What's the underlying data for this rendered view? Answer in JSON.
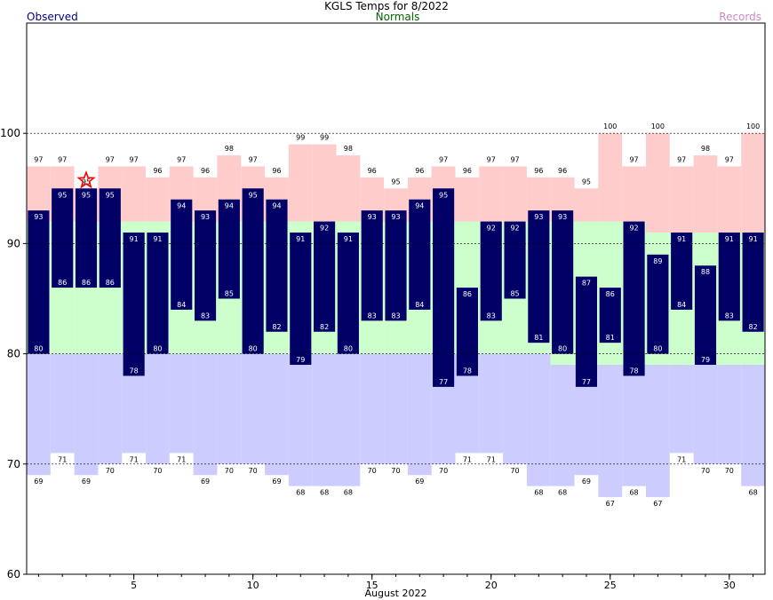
{
  "header": {
    "title": "KGLS Temps for 8/2022",
    "observed_label": "Observed",
    "normals_label": "Normals",
    "records_label": "Records"
  },
  "colors": {
    "observed": "#000066",
    "normal_band": "#ccffcc",
    "record_high_band": "#ffcccc",
    "record_low_band": "#ccccff",
    "star": "#ff0000"
  },
  "chart_data": {
    "type": "bar",
    "title": "KGLS Temps for 8/2022",
    "xlabel": "August 2022",
    "ylabel": "",
    "xlim": [
      0.5,
      31.5
    ],
    "ylim": [
      60,
      110
    ],
    "x_ticks": [
      5,
      10,
      15,
      20,
      25,
      30
    ],
    "y_ticks": [
      60,
      70,
      80,
      90,
      100
    ],
    "grid": "dashed horizontal at 70, 80, 90, 100",
    "days": [
      1,
      2,
      3,
      4,
      5,
      6,
      7,
      8,
      9,
      10,
      11,
      12,
      13,
      14,
      15,
      16,
      17,
      18,
      19,
      20,
      21,
      22,
      23,
      24,
      25,
      26,
      27,
      28,
      29,
      30,
      31
    ],
    "series": [
      {
        "name": "Observed",
        "high": [
          93,
          95,
          95,
          95,
          91,
          91,
          94,
          93,
          94,
          95,
          94,
          91,
          92,
          91,
          93,
          93,
          94,
          95,
          86,
          92,
          92,
          93,
          93,
          87,
          86,
          92,
          89,
          91,
          88,
          91,
          91
        ],
        "low": [
          80,
          86,
          86,
          86,
          78,
          80,
          84,
          83,
          85,
          80,
          82,
          79,
          82,
          80,
          83,
          83,
          84,
          77,
          78,
          83,
          85,
          81,
          80,
          77,
          81,
          78,
          80,
          84,
          79,
          83,
          82
        ]
      },
      {
        "name": "Normals",
        "high": [
          92,
          92,
          92,
          92,
          92,
          92,
          92,
          92,
          92,
          92,
          92,
          92,
          92,
          92,
          92,
          92,
          92,
          92,
          92,
          92,
          92,
          92,
          92,
          92,
          92,
          92,
          91,
          91,
          91,
          91,
          91
        ],
        "low": [
          80,
          80,
          80,
          80,
          80,
          80,
          80,
          80,
          80,
          80,
          80,
          80,
          80,
          80,
          80,
          80,
          80,
          80,
          80,
          80,
          80,
          80,
          79,
          79,
          79,
          79,
          79,
          79,
          79,
          79,
          79
        ]
      },
      {
        "name": "Records",
        "high": [
          97,
          97,
          95,
          97,
          97,
          96,
          97,
          96,
          98,
          97,
          96,
          99,
          99,
          98,
          96,
          95,
          96,
          97,
          96,
          97,
          97,
          96,
          96,
          95,
          100,
          97,
          100,
          97,
          98,
          97,
          100
        ],
        "low": [
          69,
          71,
          69,
          70,
          71,
          70,
          71,
          69,
          70,
          70,
          69,
          68,
          68,
          68,
          70,
          70,
          69,
          70,
          71,
          71,
          70,
          68,
          68,
          69,
          67,
          68,
          67,
          71,
          70,
          70,
          68
        ]
      }
    ],
    "annotations": [
      {
        "type": "star",
        "day": 3,
        "note": "record high tied"
      }
    ]
  }
}
